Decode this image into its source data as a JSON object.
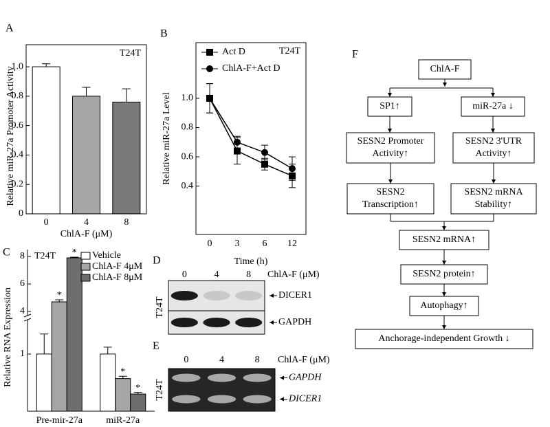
{
  "chart_data": [
    {
      "type": "bar",
      "panel": "A",
      "annotation": "T24T",
      "ylabel": "Relative miR-27a Promoter Activity",
      "xlabel": "ChlA-F (μM)",
      "categories": [
        "0",
        "4",
        "8"
      ],
      "values": [
        1.0,
        0.8,
        0.76
      ],
      "errors": [
        0.02,
        0.06,
        0.09
      ],
      "colors": [
        "#ffffff",
        "#a6a6a6",
        "#7a7a7a"
      ],
      "ylim": [
        0,
        1.15
      ],
      "yticks": [
        0,
        0.2,
        0.4,
        0.6,
        0.8,
        {
          "value": 1,
          "label": "1.0"
        }
      ]
    },
    {
      "type": "line",
      "panel": "B",
      "annotation": "T24T",
      "ylabel": "Relative miR-27a Level",
      "xlabel": "Time (h)",
      "categories": [
        "0",
        "3",
        "6",
        "12"
      ],
      "series": [
        {
          "name": "Act D",
          "color": "#000000",
          "marker": "square",
          "values": [
            1.0,
            0.64,
            0.55,
            0.47
          ],
          "errors": [
            0.1,
            0.09,
            0.04,
            0.08
          ]
        },
        {
          "name": "ChlA-F+Act D",
          "color": "#000000",
          "marker": "circle",
          "values": [
            1.0,
            0.7,
            0.63,
            0.52
          ],
          "errors": [
            0.1,
            0.04,
            0.05,
            0.08
          ]
        }
      ],
      "ylim": [
        0.07,
        1.38
      ],
      "yticks": [
        0.4,
        0.6,
        0.8,
        {
          "value": 1,
          "label": "1.0"
        }
      ],
      "legend": "upper left"
    },
    {
      "type": "bar",
      "panel": "C",
      "annotation": "T24T",
      "ylabel": "Relative RNA Expression",
      "categories": [
        "Pre-mir-27a",
        "miR-27a"
      ],
      "series": [
        {
          "name": "Vehicle",
          "color": "#ffffff",
          "values": [
            1.0,
            1.0
          ],
          "errors": [
            0.35,
            0.12
          ],
          "significance": [
            null,
            null
          ]
        },
        {
          "name": "ChlA-F 4μM",
          "color": "#a6a6a6",
          "values": [
            4.7,
            0.57
          ],
          "errors": [
            0.15,
            0.04
          ],
          "significance": [
            "*",
            "*"
          ]
        },
        {
          "name": "ChlA-F 8μM",
          "color": "#6e6e6e",
          "values": [
            7.9,
            0.3
          ],
          "errors": [
            0.05,
            0.03
          ],
          "significance": [
            "*",
            "*"
          ]
        }
      ],
      "ylim": [
        0,
        8.5
      ],
      "ybreak": [
        1.6,
        3.7
      ],
      "yticks": [
        1,
        4,
        6,
        8
      ],
      "legend": "upper left"
    }
  ],
  "blots": [
    {
      "panel": "D",
      "doses": [
        "0",
        "4",
        "8"
      ],
      "treatment": "ChlA-F (μM)",
      "cell": "T24T",
      "rows": [
        "DICER1",
        "GAPDH"
      ]
    },
    {
      "panel": "E",
      "doses": [
        "0",
        "4",
        "8"
      ],
      "treatment": "ChlA-F (μM)",
      "cell": "T24T",
      "rows": [
        "GAPDH",
        "DICER1"
      ]
    }
  ],
  "diagram": {
    "panel": "F",
    "nodes": [
      {
        "lines": [
          "ChlA-F"
        ]
      },
      {
        "lines": [
          "SP1↑"
        ]
      },
      {
        "lines": [
          "miR-27a ↓"
        ]
      },
      {
        "lines": [
          "SESN2 Promoter",
          "Activity↑"
        ]
      },
      {
        "lines": [
          "SESN2 3'UTR",
          "Activity↑"
        ]
      },
      {
        "lines": [
          "SESN2",
          "Transcription↑"
        ]
      },
      {
        "lines": [
          "SESN2 mRNA",
          "Stability↑"
        ]
      },
      {
        "lines": [
          "SESN2 mRNA↑"
        ]
      },
      {
        "lines": [
          "SESN2 protein↑"
        ]
      },
      {
        "lines": [
          "Autophagy↑"
        ]
      },
      {
        "lines": [
          "Anchorage-independent Growth ↓"
        ]
      }
    ]
  }
}
